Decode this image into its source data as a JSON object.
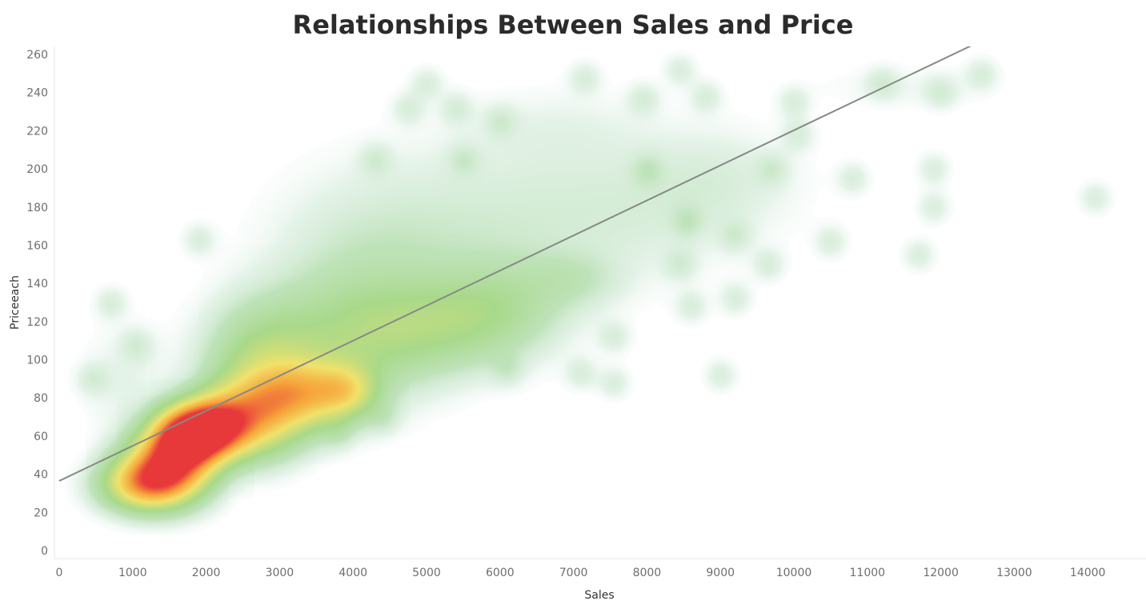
{
  "chart_data": {
    "type": "scatter",
    "title": "Relationships Between Sales and Price",
    "xlabel": "Sales",
    "ylabel": "Priceeach",
    "xlim": [
      0,
      14800
    ],
    "ylim": [
      0,
      265
    ],
    "x_ticks": [
      "0",
      "1000",
      "2000",
      "3000",
      "4000",
      "5000",
      "6000",
      "7000",
      "8000",
      "9000",
      "10000",
      "11000",
      "12000",
      "13000",
      "14000"
    ],
    "y_ticks": [
      "0",
      "20",
      "40",
      "60",
      "80",
      "100",
      "120",
      "140",
      "160",
      "180",
      "200",
      "220",
      "240",
      "260"
    ],
    "grid": false,
    "density_colors": [
      "#cfe9dc",
      "#a8d98a",
      "#f1e26a",
      "#f6a43a",
      "#e8393a"
    ],
    "trend_line": {
      "x": [
        0,
        12600
      ],
      "y": [
        36.5,
        268
      ],
      "color": "#868a86"
    },
    "clusters": [
      {
        "x": 1150,
        "y": 35,
        "sx": 380,
        "sy": 9,
        "w": 0.5
      },
      {
        "x": 1500,
        "y": 45,
        "sx": 380,
        "sy": 12,
        "w": 0.7
      },
      {
        "x": 1750,
        "y": 60,
        "sx": 320,
        "sy": 10,
        "w": 0.8
      },
      {
        "x": 2100,
        "y": 65,
        "sx": 330,
        "sy": 10,
        "w": 0.6
      },
      {
        "x": 2600,
        "y": 70,
        "sx": 450,
        "sy": 14,
        "w": 0.45
      },
      {
        "x": 3300,
        "y": 82,
        "sx": 480,
        "sy": 12,
        "w": 0.4
      },
      {
        "x": 3900,
        "y": 84,
        "sx": 280,
        "sy": 9,
        "w": 0.25
      },
      {
        "x": 2800,
        "y": 100,
        "sx": 520,
        "sy": 20,
        "w": 0.22
      },
      {
        "x": 4000,
        "y": 110,
        "sx": 700,
        "sy": 22,
        "w": 0.16
      },
      {
        "x": 5200,
        "y": 118,
        "sx": 750,
        "sy": 16,
        "w": 0.16
      },
      {
        "x": 6000,
        "y": 130,
        "sx": 600,
        "sy": 16,
        "w": 0.1
      },
      {
        "x": 7000,
        "y": 142,
        "sx": 450,
        "sy": 10,
        "w": 0.06
      },
      {
        "x": 4200,
        "y": 150,
        "sx": 900,
        "sy": 30,
        "w": 0.06
      },
      {
        "x": 5800,
        "y": 170,
        "sx": 1200,
        "sy": 30,
        "w": 0.045
      },
      {
        "x": 7800,
        "y": 180,
        "sx": 1100,
        "sy": 24,
        "w": 0.04
      },
      {
        "x": 9000,
        "y": 195,
        "sx": 700,
        "sy": 18,
        "w": 0.035
      },
      {
        "x": 6800,
        "y": 222,
        "sx": 900,
        "sy": 14,
        "w": 0.022
      },
      {
        "x": 11500,
        "y": 243,
        "sx": 800,
        "sy": 8,
        "w": 0.02
      },
      {
        "x": 900,
        "y": 90,
        "sx": 400,
        "sy": 20,
        "w": 0.03
      }
    ],
    "blobs": [
      {
        "x": 700,
        "y": 130
      },
      {
        "x": 1050,
        "y": 108
      },
      {
        "x": 450,
        "y": 90
      },
      {
        "x": 1900,
        "y": 163
      },
      {
        "x": 4750,
        "y": 232
      },
      {
        "x": 5000,
        "y": 245
      },
      {
        "x": 5400,
        "y": 232
      },
      {
        "x": 6000,
        "y": 225
      },
      {
        "x": 7150,
        "y": 248
      },
      {
        "x": 7950,
        "y": 237
      },
      {
        "x": 8450,
        "y": 252
      },
      {
        "x": 8800,
        "y": 238
      },
      {
        "x": 9700,
        "y": 200
      },
      {
        "x": 10000,
        "y": 235
      },
      {
        "x": 10050,
        "y": 218
      },
      {
        "x": 10800,
        "y": 195
      },
      {
        "x": 11200,
        "y": 245
      },
      {
        "x": 11900,
        "y": 200
      },
      {
        "x": 11900,
        "y": 180
      },
      {
        "x": 12000,
        "y": 240
      },
      {
        "x": 12550,
        "y": 250
      },
      {
        "x": 14100,
        "y": 185
      },
      {
        "x": 9200,
        "y": 165
      },
      {
        "x": 9650,
        "y": 150
      },
      {
        "x": 10500,
        "y": 162
      },
      {
        "x": 11700,
        "y": 155
      },
      {
        "x": 9200,
        "y": 132
      },
      {
        "x": 9000,
        "y": 92
      },
      {
        "x": 8450,
        "y": 150
      },
      {
        "x": 8600,
        "y": 128
      },
      {
        "x": 7100,
        "y": 93
      },
      {
        "x": 7550,
        "y": 88
      },
      {
        "x": 7550,
        "y": 112
      },
      {
        "x": 6100,
        "y": 95
      },
      {
        "x": 4400,
        "y": 70
      },
      {
        "x": 3800,
        "y": 62
      },
      {
        "x": 8550,
        "y": 172
      },
      {
        "x": 8000,
        "y": 200
      },
      {
        "x": 5500,
        "y": 205
      },
      {
        "x": 4300,
        "y": 205
      }
    ]
  }
}
